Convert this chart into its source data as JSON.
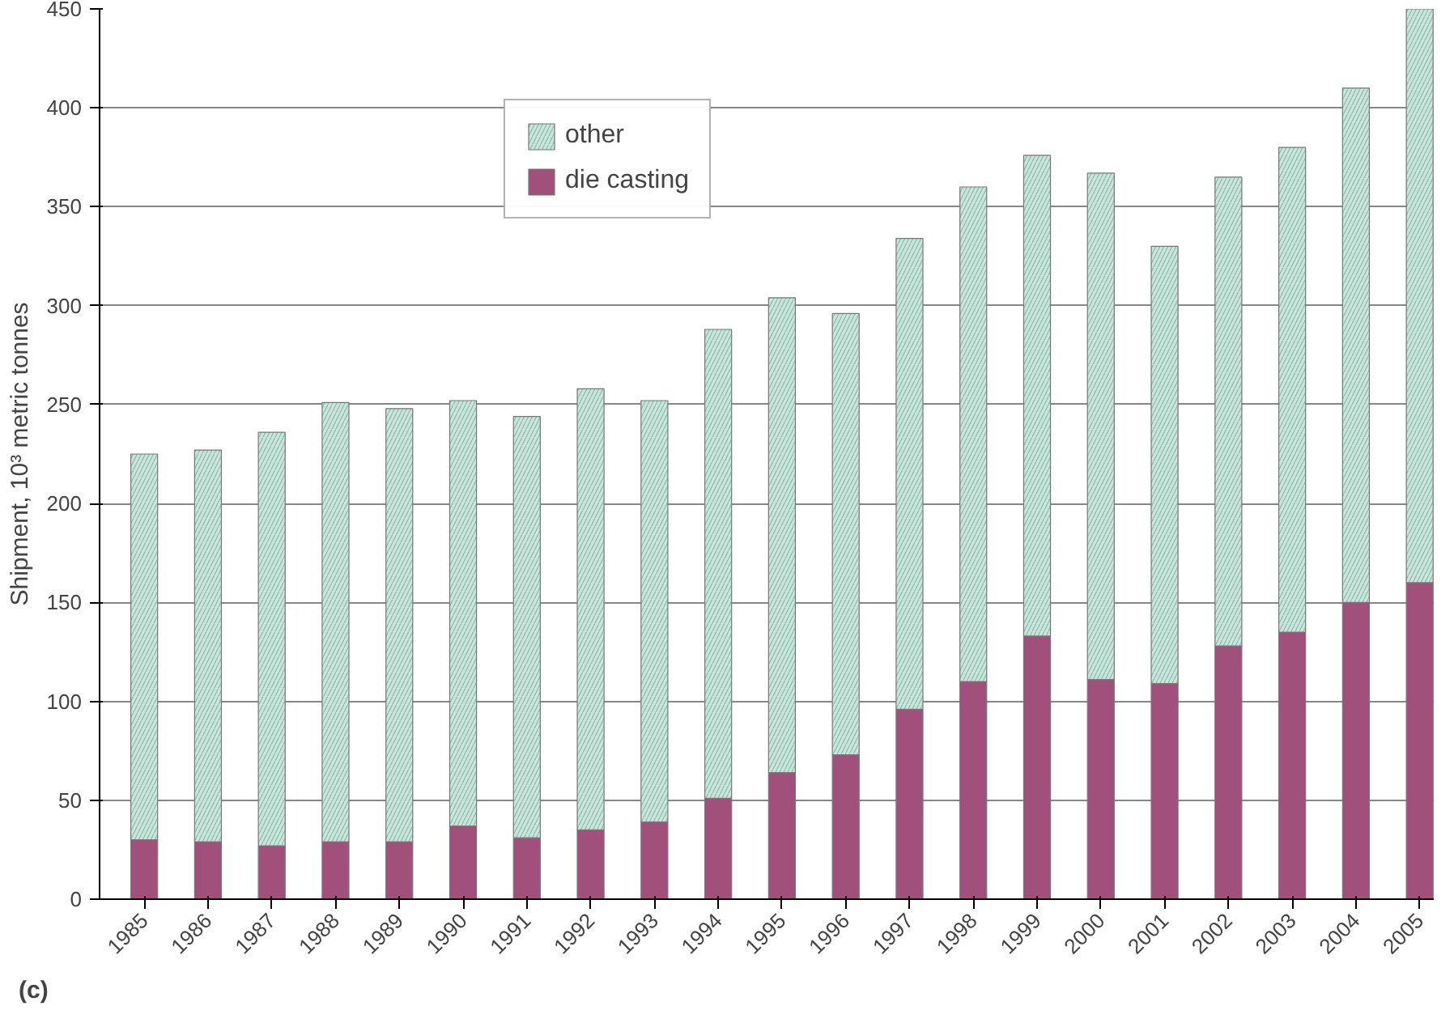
{
  "chart_data": {
    "type": "bar",
    "stacked": true,
    "ylabel": "Shipment, 10³ metric tonnes",
    "categories": [
      "1985",
      "1986",
      "1987",
      "1988",
      "1989",
      "1990",
      "1991",
      "1992",
      "1993",
      "1994",
      "1995",
      "1996",
      "1997",
      "1998",
      "1999",
      "2000",
      "2001",
      "2002",
      "2003",
      "2004",
      "2005"
    ],
    "series": [
      {
        "name": "die casting",
        "color": "#a0507a",
        "values": [
          30,
          29,
          27,
          29,
          29,
          37,
          31,
          35,
          39,
          51,
          64,
          73,
          96,
          110,
          133,
          111,
          109,
          128,
          135,
          150,
          160
        ]
      },
      {
        "name": "other",
        "color": "#c8e6dc",
        "values": [
          195,
          198,
          209,
          222,
          219,
          215,
          213,
          223,
          213,
          237,
          240,
          223,
          238,
          250,
          243,
          256,
          221,
          237,
          245,
          260,
          290
        ]
      }
    ],
    "ylim": [
      0,
      450
    ],
    "yticks": [
      0,
      50,
      100,
      150,
      200,
      250,
      300,
      350,
      400,
      450
    ],
    "grid": "y",
    "legend": "top left",
    "annotations": [
      "(c)"
    ]
  }
}
